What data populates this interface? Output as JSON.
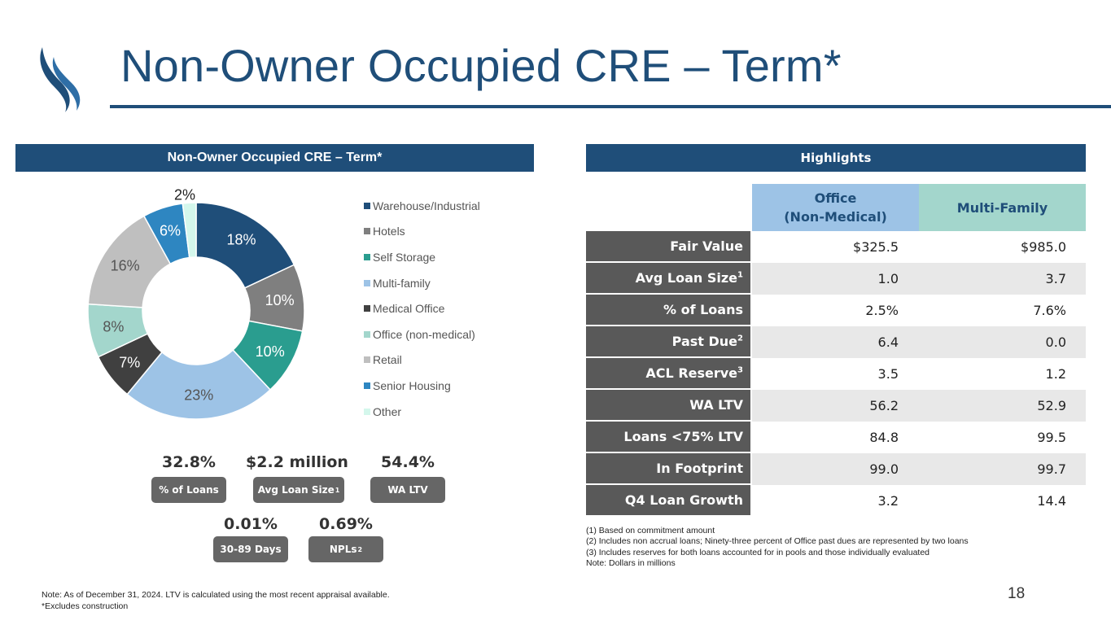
{
  "page": {
    "title": "Non-Owner Occupied CRE – Term*",
    "page_number": "18"
  },
  "left_panel": {
    "header": "Non-Owner Occupied CRE – Term*"
  },
  "right_panel": {
    "header": "Highlights"
  },
  "chart_data": {
    "type": "pie",
    "style": "donut",
    "title": "",
    "legend_position": "right",
    "categories": [
      "Warehouse/Industrial",
      "Hotels",
      "Self Storage",
      "Multi-family",
      "Medical Office",
      "Office (non-medical)",
      "Retail",
      "Senior Housing",
      "Other"
    ],
    "values": [
      18,
      10,
      10,
      23,
      7,
      8,
      16,
      6,
      2
    ],
    "labels": [
      "18%",
      "10%",
      "10%",
      "23%",
      "7%",
      "8%",
      "16%",
      "6%",
      "2%"
    ],
    "colors": [
      "#1f4e79",
      "#7f7f7f",
      "#2a9d8f",
      "#9dc3e6",
      "#404040",
      "#a3d6cc",
      "#bfbfbf",
      "#2e86c1",
      "#d4f7ec"
    ]
  },
  "stats": [
    {
      "value": "32.8%",
      "label": "% of Loans",
      "sup": ""
    },
    {
      "value": "$2.2 million",
      "label": "Avg Loan Size",
      "sup": "1"
    },
    {
      "value": "54.4%",
      "label": "WA LTV",
      "sup": ""
    },
    {
      "value": "0.01%",
      "label": "30-89 Days",
      "sup": ""
    },
    {
      "value": "0.69%",
      "label": "NPLs",
      "sup": "2"
    }
  ],
  "highlights_table": {
    "columns": [
      "Office\n(Non-Medical)",
      "Multi-Family"
    ],
    "column_line1": "Office",
    "column_line2": "(Non-Medical)",
    "rows": [
      {
        "label": "Fair Value",
        "sup": "",
        "office": "$325.5",
        "multi": "$985.0"
      },
      {
        "label": "Avg Loan Size",
        "sup": "1",
        "office": "1.0",
        "multi": "3.7"
      },
      {
        "label": "% of Loans",
        "sup": "",
        "office": "2.5%",
        "multi": "7.6%"
      },
      {
        "label": "Past Due",
        "sup": "2",
        "office": "6.4",
        "multi": "0.0"
      },
      {
        "label": "ACL Reserve",
        "sup": "3",
        "office": "3.5",
        "multi": "1.2"
      },
      {
        "label": "WA LTV",
        "sup": "",
        "office": "56.2",
        "multi": "52.9"
      },
      {
        "label": "Loans <75% LTV",
        "sup": "",
        "office": "84.8",
        "multi": "99.5"
      },
      {
        "label": "In Footprint",
        "sup": "",
        "office": "99.0",
        "multi": "99.7"
      },
      {
        "label": "Q4 Loan Growth",
        "sup": "",
        "office": "3.2",
        "multi": "14.4"
      }
    ]
  },
  "footnotes": [
    "(1) Based on commitment amount",
    "(2) Includes non accrual loans; Ninety-three percent of Office past dues are represented by two loans",
    "(3) Includes reserves for both loans accounted for in pools and those individually evaluated",
    "Note: Dollars in millions"
  ],
  "note": {
    "line1": "Note: As of December 31, 2024. LTV is calculated using the most recent appraisal available.",
    "line2": "*Excludes construction"
  }
}
